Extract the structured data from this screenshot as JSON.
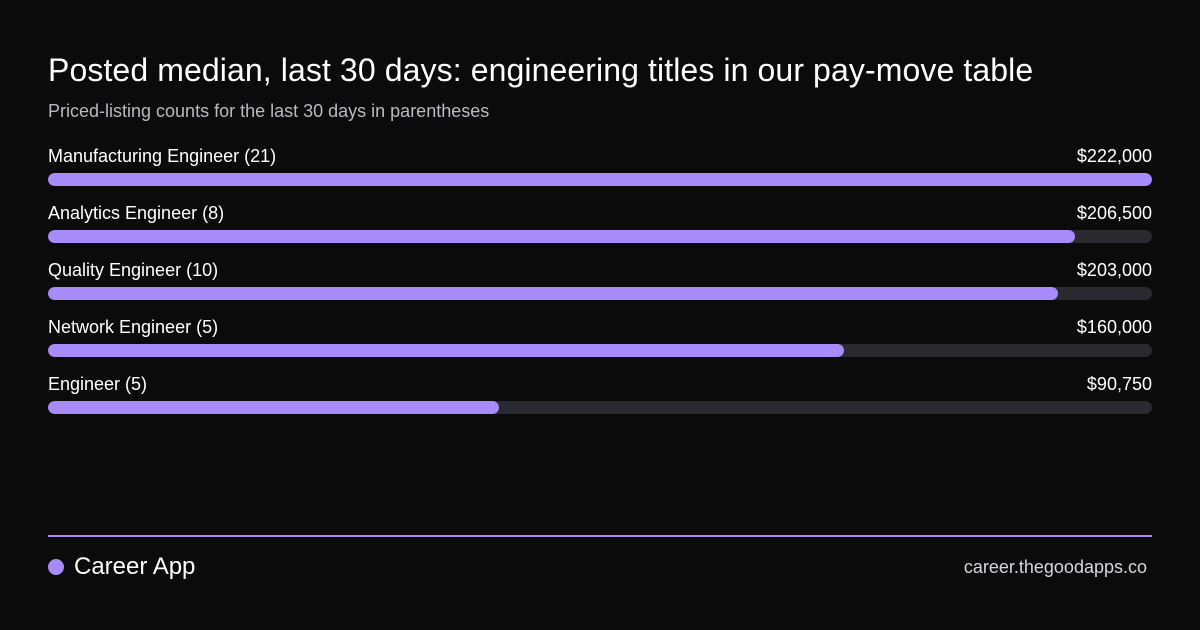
{
  "title": "Posted median, last 30 days: engineering titles in our pay-move table",
  "subtitle": "Priced-listing counts for the last 30 days in parentheses",
  "colors": {
    "background": "#0b0b0c",
    "bar": "#a78bfa",
    "track": "#2a2930",
    "divider": "#a78bfa"
  },
  "chart_data": {
    "type": "bar",
    "orientation": "horizontal",
    "title": "Posted median, last 30 days: engineering titles in our pay-move table",
    "subtitle": "Priced-listing counts for the last 30 days in parentheses",
    "categories": [
      "Manufacturing Engineer (21)",
      "Analytics Engineer (8)",
      "Quality Engineer (10)",
      "Network Engineer (5)",
      "Engineer (5)"
    ],
    "values": [
      222000,
      206500,
      203000,
      160000,
      90750
    ],
    "value_labels": [
      "$222,000",
      "$206,500",
      "$203,000",
      "$160,000",
      "$90,750"
    ],
    "xlim": [
      0,
      222000
    ],
    "grid": false,
    "legend": "none"
  },
  "footer": {
    "brand": "Career App",
    "url": "career.thegoodapps.co"
  }
}
